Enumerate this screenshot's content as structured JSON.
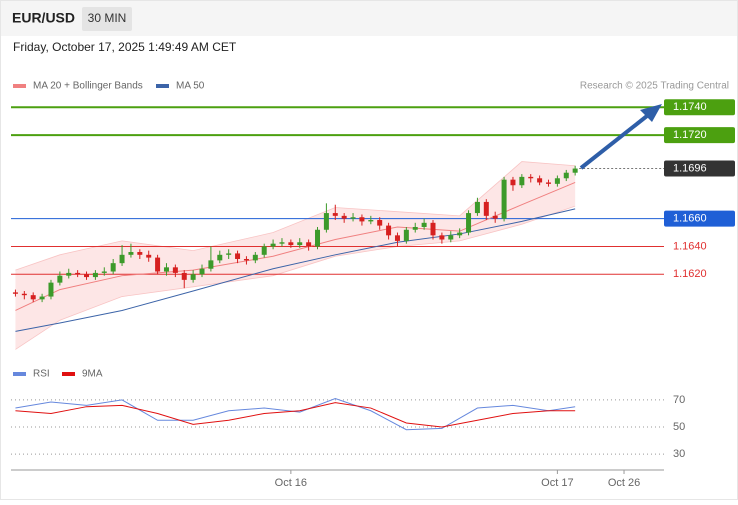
{
  "chart_data": {
    "type": "candlestick",
    "symbol": "EUR/USD",
    "interval": "30 MIN",
    "timestamp": "Friday, October 17, 2025 1:49:49 AM CET",
    "legend": [
      "MA 20 + Bollinger Bands",
      "MA 50"
    ],
    "credit": "Research © 2025 Trading Central",
    "colors": {
      "up": "#3c9a2a",
      "down": "#d62020",
      "ma20": "#f08080",
      "ma50": "#3c64a8",
      "band": "#fde0e0",
      "rsi": "#6688dd",
      "rsi_ma": "#e01010",
      "arrow": "#2e5ea8"
    },
    "xlim": [
      -0.5,
      73
    ],
    "ylim": [
      1.1562,
      1.1774
    ],
    "candles": [
      [
        1.1607,
        1.1609,
        1.1604,
        1.1606
      ],
      [
        1.1606,
        1.1608,
        1.1602,
        1.1605
      ],
      [
        1.1605,
        1.1607,
        1.16,
        1.1602
      ],
      [
        1.1602,
        1.1606,
        1.16,
        1.1604
      ],
      [
        1.1604,
        1.1616,
        1.1602,
        1.1614
      ],
      [
        1.1614,
        1.1622,
        1.1612,
        1.1619
      ],
      [
        1.1619,
        1.1624,
        1.1617,
        1.1621
      ],
      [
        1.1621,
        1.1623,
        1.1618,
        1.162
      ],
      [
        1.162,
        1.1622,
        1.1616,
        1.1618
      ],
      [
        1.1618,
        1.1623,
        1.1616,
        1.1621
      ],
      [
        1.1621,
        1.1625,
        1.1619,
        1.1622
      ],
      [
        1.1622,
        1.1631,
        1.162,
        1.1628
      ],
      [
        1.1628,
        1.1641,
        1.1626,
        1.1634
      ],
      [
        1.1634,
        1.1642,
        1.1632,
        1.1636
      ],
      [
        1.1636,
        1.1638,
        1.1631,
        1.1634
      ],
      [
        1.1634,
        1.1637,
        1.1629,
        1.1632
      ],
      [
        1.1632,
        1.1634,
        1.162,
        1.1622
      ],
      [
        1.1622,
        1.1628,
        1.1619,
        1.1625
      ],
      [
        1.1625,
        1.1627,
        1.1618,
        1.1621
      ],
      [
        1.1621,
        1.1623,
        1.161,
        1.1616
      ],
      [
        1.1616,
        1.1623,
        1.1614,
        1.162
      ],
      [
        1.162,
        1.1627,
        1.1618,
        1.1624
      ],
      [
        1.1624,
        1.164,
        1.1622,
        1.163
      ],
      [
        1.163,
        1.1637,
        1.1628,
        1.1634
      ],
      [
        1.1634,
        1.1638,
        1.1631,
        1.1635
      ],
      [
        1.1635,
        1.1637,
        1.1628,
        1.1631
      ],
      [
        1.1631,
        1.1633,
        1.1627,
        1.163
      ],
      [
        1.163,
        1.1636,
        1.1628,
        1.1634
      ],
      [
        1.1634,
        1.1642,
        1.1632,
        1.164
      ],
      [
        1.164,
        1.1645,
        1.1638,
        1.1642
      ],
      [
        1.1642,
        1.1646,
        1.164,
        1.1643
      ],
      [
        1.1643,
        1.1645,
        1.1639,
        1.1641
      ],
      [
        1.1641,
        1.1646,
        1.1639,
        1.1643
      ],
      [
        1.1643,
        1.1645,
        1.1637,
        1.164
      ],
      [
        1.164,
        1.1654,
        1.1638,
        1.1652
      ],
      [
        1.1652,
        1.1671,
        1.165,
        1.1664
      ],
      [
        1.1664,
        1.167,
        1.1659,
        1.1662
      ],
      [
        1.1662,
        1.1664,
        1.1657,
        1.166
      ],
      [
        1.166,
        1.1664,
        1.1658,
        1.1661
      ],
      [
        1.1661,
        1.1663,
        1.1655,
        1.1658
      ],
      [
        1.1658,
        1.1662,
        1.1656,
        1.1659
      ],
      [
        1.1659,
        1.1661,
        1.1652,
        1.1655
      ],
      [
        1.1655,
        1.1657,
        1.1645,
        1.1648
      ],
      [
        1.1648,
        1.165,
        1.164,
        1.1644
      ],
      [
        1.1644,
        1.1654,
        1.1642,
        1.1652
      ],
      [
        1.1652,
        1.1657,
        1.165,
        1.1654
      ],
      [
        1.1654,
        1.166,
        1.1652,
        1.1657
      ],
      [
        1.1657,
        1.1659,
        1.1645,
        1.1648
      ],
      [
        1.1648,
        1.165,
        1.1642,
        1.1645
      ],
      [
        1.1645,
        1.1651,
        1.1643,
        1.1648
      ],
      [
        1.1648,
        1.1653,
        1.1646,
        1.165
      ],
      [
        1.165,
        1.1666,
        1.1648,
        1.1664
      ],
      [
        1.1664,
        1.1675,
        1.1662,
        1.1672
      ],
      [
        1.1672,
        1.1674,
        1.1659,
        1.1662
      ],
      [
        1.1662,
        1.1665,
        1.1657,
        1.166
      ],
      [
        1.166,
        1.169,
        1.1658,
        1.1688
      ],
      [
        1.1688,
        1.169,
        1.168,
        1.1684
      ],
      [
        1.1684,
        1.1692,
        1.1682,
        1.169
      ],
      [
        1.169,
        1.1692,
        1.1686,
        1.1689
      ],
      [
        1.1689,
        1.1691,
        1.1684,
        1.1686
      ],
      [
        1.1686,
        1.1688,
        1.1683,
        1.1685
      ],
      [
        1.1685,
        1.1691,
        1.1683,
        1.1689
      ],
      [
        1.1689,
        1.1695,
        1.1687,
        1.1693
      ],
      [
        1.1693,
        1.1698,
        1.1691,
        1.1696
      ]
    ],
    "indicators": {
      "index": [
        0,
        5,
        12,
        20,
        29,
        36,
        43,
        50,
        57,
        63
      ],
      "ma50": [
        1.1579,
        1.1585,
        1.1594,
        1.1608,
        1.1624,
        1.1634,
        1.1643,
        1.1649,
        1.1658,
        1.1667
      ],
      "ma20": [
        1.1594,
        1.1609,
        1.1619,
        1.1623,
        1.1633,
        1.1645,
        1.1654,
        1.1651,
        1.167,
        1.1686
      ],
      "bb_upper": [
        1.1623,
        1.1634,
        1.1644,
        1.1637,
        1.165,
        1.1668,
        1.1665,
        1.1662,
        1.1701,
        1.1698
      ],
      "bb_lower": [
        1.1566,
        1.1587,
        1.1604,
        1.1611,
        1.1619,
        1.1633,
        1.164,
        1.1644,
        1.1656,
        1.1669
      ]
    },
    "levels": [
      {
        "value": 1.174,
        "label": "1.1740",
        "style": "box",
        "color": "#4ca010"
      },
      {
        "value": 1.172,
        "label": "1.1720",
        "style": "box",
        "color": "#4ca010"
      },
      {
        "value": 1.1696,
        "label": "1.1696",
        "style": "current",
        "color": "#333333"
      },
      {
        "value": 1.166,
        "label": "1.1660",
        "style": "box",
        "color": "#1f5fd6"
      },
      {
        "value": 1.164,
        "label": "1.1640",
        "style": "text",
        "color": "#e03030"
      },
      {
        "value": 1.162,
        "label": "1.1620",
        "style": "text",
        "color": "#e03030"
      }
    ],
    "rsi": {
      "legend": [
        "RSI",
        "9MA"
      ],
      "ylim": [
        22,
        81
      ],
      "yticks": [
        70,
        50,
        30
      ],
      "index": [
        0,
        4,
        8,
        12,
        16,
        20,
        24,
        28,
        32,
        36,
        40,
        44,
        48,
        52,
        56,
        60,
        63
      ],
      "values": [
        64,
        68.5,
        66,
        70,
        55,
        55,
        62,
        64,
        61,
        71,
        62,
        48,
        49,
        64,
        66,
        62,
        65
      ],
      "ma": [
        62,
        60,
        65,
        66,
        60,
        52,
        55,
        60,
        62,
        68,
        64,
        53,
        50,
        55,
        60,
        62,
        62
      ]
    },
    "xlabels": [
      "Oct 16",
      "Oct 17",
      "Oct 26"
    ],
    "xlabel_index": [
      31,
      61,
      68.5
    ]
  }
}
